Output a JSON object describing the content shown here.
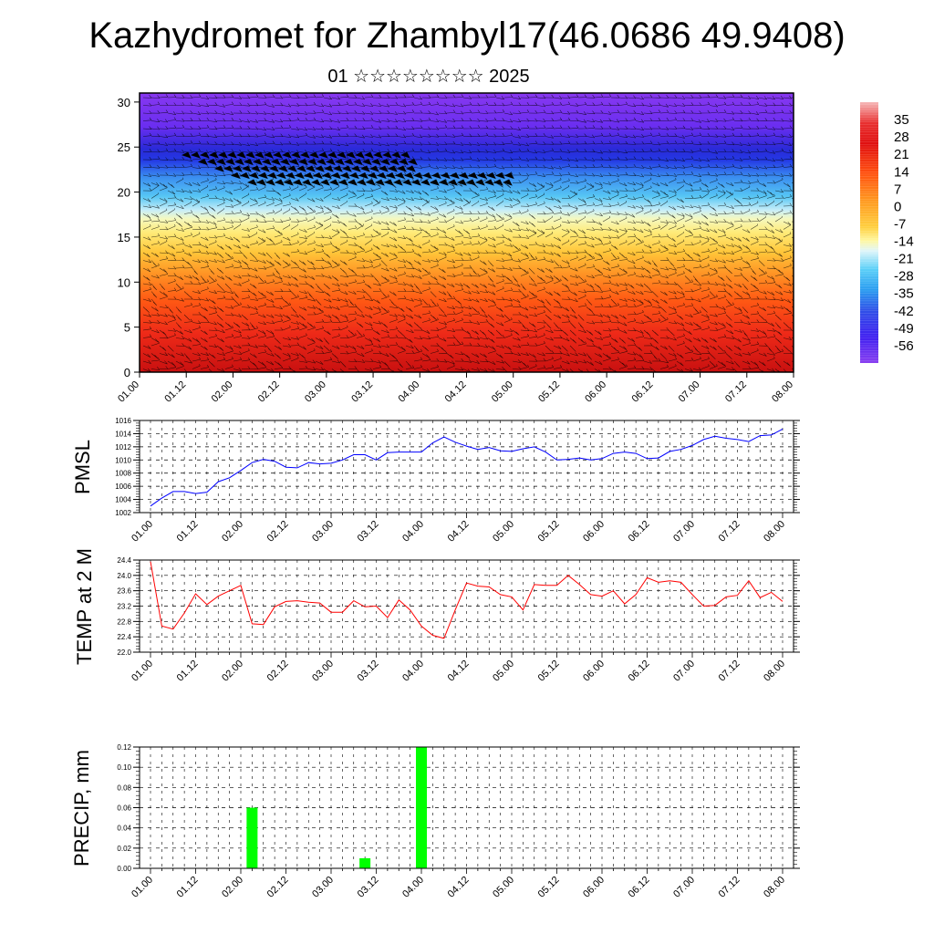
{
  "header": {
    "title": "Kazhydromet for Zhambyl17(46.0686 49.9408)",
    "subtitle": "01 ☆☆☆☆☆☆☆☆ 2025"
  },
  "chart_data": [
    {
      "type": "heatmap",
      "name": "temperature-cross-section",
      "x_tick_labels": [
        "01.00",
        "01.12",
        "02.00",
        "02.12",
        "03.00",
        "03.12",
        "04.00",
        "04.12",
        "05.00",
        "05.12",
        "06.00",
        "06.12",
        "07.00",
        "07.12",
        "08.00"
      ],
      "y_ticks": [
        0,
        5,
        10,
        15,
        20,
        25,
        30
      ],
      "ylim": [
        0,
        31
      ],
      "colorbar": {
        "labels": [
          "35",
          "28",
          "21",
          "14",
          "7",
          "0",
          "-7",
          "-14",
          "-21",
          "-28",
          "-35",
          "-42",
          "-49",
          "-56"
        ],
        "range": [
          -63,
          42
        ],
        "colors": [
          "#f4b0b0",
          "#e02020",
          "#ff5a10",
          "#ffa020",
          "#ffd040",
          "#fff9a0",
          "#d8f4f8",
          "#40c8f8",
          "#4060f0",
          "#5020f0",
          "#7830f0"
        ]
      },
      "overlay": "wind barbs"
    },
    {
      "type": "line",
      "name": "pmsl",
      "ylabel": "PMSL",
      "ylim": [
        1002,
        1016
      ],
      "y_ticks": [
        1002,
        1004,
        1006,
        1008,
        1010,
        1012,
        1014,
        1016
      ],
      "x_tick_labels": [
        "01.00",
        "01.12",
        "02.00",
        "02.12",
        "03.00",
        "03.12",
        "04.00",
        "04.12",
        "05.00",
        "05.12",
        "06.00",
        "06.12",
        "07.00",
        "07.12",
        "08.00"
      ],
      "color": "#0000ff",
      "x": [
        0,
        3,
        6,
        9,
        12,
        15,
        18,
        21,
        24,
        27,
        30,
        33,
        36,
        39,
        42,
        45,
        48,
        51,
        54,
        57,
        60,
        63,
        66,
        69,
        72,
        75,
        78,
        81,
        84,
        87,
        90,
        93,
        96,
        99,
        102,
        105,
        108,
        111,
        114,
        117,
        120,
        123,
        126,
        129,
        132,
        135,
        138,
        141,
        144,
        147,
        150,
        153,
        156,
        159,
        162,
        165,
        168
      ],
      "values": [
        1003.0,
        1004.2,
        1005.2,
        1005.2,
        1004.9,
        1005.1,
        1006.7,
        1007.3,
        1008.4,
        1009.6,
        1010.1,
        1009.8,
        1008.9,
        1008.8,
        1009.6,
        1009.4,
        1009.5,
        1010.0,
        1010.8,
        1010.8,
        1010.0,
        1011.1,
        1011.2,
        1011.2,
        1011.2,
        1012.6,
        1013.5,
        1012.7,
        1012.1,
        1011.6,
        1011.9,
        1011.4,
        1011.3,
        1011.7,
        1012.0,
        1011.2,
        1010.0,
        1010.1,
        1010.3,
        1010.0,
        1010.2,
        1011.0,
        1011.2,
        1011.0,
        1010.2,
        1010.3,
        1011.3,
        1011.6,
        1012.2,
        1013.1,
        1013.6,
        1013.3,
        1013.1,
        1012.8,
        1013.7,
        1013.8,
        1014.7
      ]
    },
    {
      "type": "line",
      "name": "temp-2m",
      "ylabel": "TEMP at 2 M",
      "ylim": [
        22.0,
        24.4
      ],
      "y_ticks": [
        22.0,
        22.4,
        22.8,
        23.2,
        23.6,
        24.0,
        24.4
      ],
      "x_tick_labels": [
        "01.00",
        "01.12",
        "02.00",
        "02.12",
        "03.00",
        "03.12",
        "04.00",
        "04.12",
        "05.00",
        "05.12",
        "06.00",
        "06.12",
        "07.00",
        "07.12",
        "08.00"
      ],
      "color": "#ff0000",
      "x": [
        0,
        3,
        6,
        9,
        12,
        15,
        18,
        21,
        24,
        27,
        30,
        33,
        36,
        39,
        42,
        45,
        48,
        51,
        54,
        57,
        60,
        63,
        66,
        69,
        72,
        75,
        78,
        81,
        84,
        87,
        90,
        93,
        96,
        99,
        102,
        105,
        108,
        111,
        114,
        117,
        120,
        123,
        126,
        129,
        132,
        135,
        138,
        141,
        144,
        147,
        150,
        153,
        156,
        159,
        162,
        165,
        168
      ],
      "values": [
        24.36,
        22.68,
        22.6,
        23.02,
        23.52,
        23.24,
        23.46,
        23.6,
        23.74,
        22.74,
        22.72,
        23.18,
        23.32,
        23.34,
        23.3,
        23.28,
        23.04,
        23.04,
        23.34,
        23.18,
        23.2,
        22.9,
        23.36,
        23.1,
        22.68,
        22.44,
        22.36,
        23.1,
        23.8,
        23.72,
        23.7,
        23.5,
        23.44,
        23.1,
        23.76,
        23.74,
        23.74,
        24.0,
        23.76,
        23.5,
        23.46,
        23.6,
        23.26,
        23.5,
        23.94,
        23.82,
        23.86,
        23.82,
        23.5,
        23.2,
        23.22,
        23.44,
        23.48,
        23.86,
        23.42,
        23.56,
        23.32
      ]
    },
    {
      "type": "bar",
      "name": "precip",
      "ylabel": "PRECIP, mm",
      "ylim": [
        0,
        0.12
      ],
      "y_tick_labels": [
        "0.00",
        "0.02",
        "0.04",
        "0.06",
        "0.08",
        "0.10",
        "0.12"
      ],
      "x_tick_labels": [
        "01.00",
        "01.12",
        "02.00",
        "02.12",
        "03.00",
        "03.12",
        "04.00",
        "04.12",
        "05.00",
        "05.12",
        "06.00",
        "06.12",
        "07.00",
        "07.12",
        "08.00"
      ],
      "color": "#00ff00",
      "x": [
        27,
        57,
        72
      ],
      "values": [
        0.06,
        0.01,
        0.12
      ]
    }
  ]
}
